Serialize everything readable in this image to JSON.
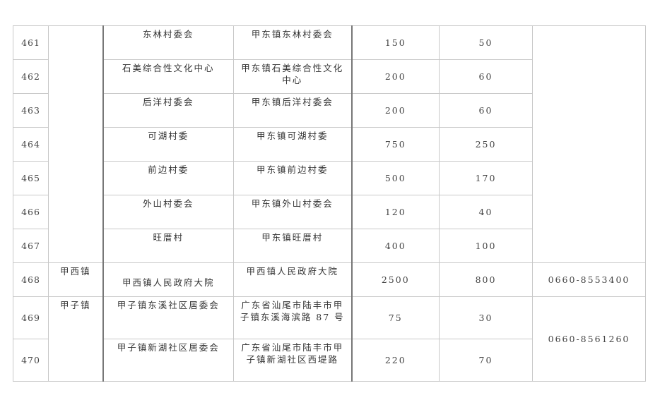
{
  "rows": [
    {
      "no": "461",
      "name": "东林村委会",
      "address": "甲东镇东林村委会",
      "a": "150",
      "b": "50"
    },
    {
      "no": "462",
      "name": "石美综合性文化中心",
      "address": "甲东镇石美综合性文化中心",
      "a": "200",
      "b": "60"
    },
    {
      "no": "463",
      "name": "后洋村委会",
      "address": "甲东镇后洋村委会",
      "a": "200",
      "b": "60"
    },
    {
      "no": "464",
      "name": "可湖村委",
      "address": "甲东镇可湖村委",
      "a": "750",
      "b": "250"
    },
    {
      "no": "465",
      "name": "前边村委",
      "address": "甲东镇前边村委",
      "a": "500",
      "b": "170"
    },
    {
      "no": "466",
      "name": "外山村委会",
      "address": "甲东镇外山村委会",
      "a": "120",
      "b": "40"
    },
    {
      "no": "467",
      "name": "旺厝村",
      "address": "甲东镇旺厝村",
      "a": "400",
      "b": "100"
    },
    {
      "no": "468",
      "town": "甲西镇",
      "name": "甲西镇人民政府大院",
      "address": "甲西镇人民政府大院",
      "a": "2500",
      "b": "800",
      "phone": "0660-8553400"
    },
    {
      "no": "469",
      "town": "甲子镇",
      "name": "甲子镇东溪社区居委会",
      "address": "广东省汕尾市陆丰市甲子镇东溪海滨路 87 号",
      "a": "75",
      "b": "30",
      "phone": "0660-8561260"
    },
    {
      "no": "470",
      "name": "甲子镇新湖社区居委会",
      "address": "广东省汕尾市陆丰市甲子镇新湖社区西堤路",
      "a": "220",
      "b": "70"
    }
  ]
}
